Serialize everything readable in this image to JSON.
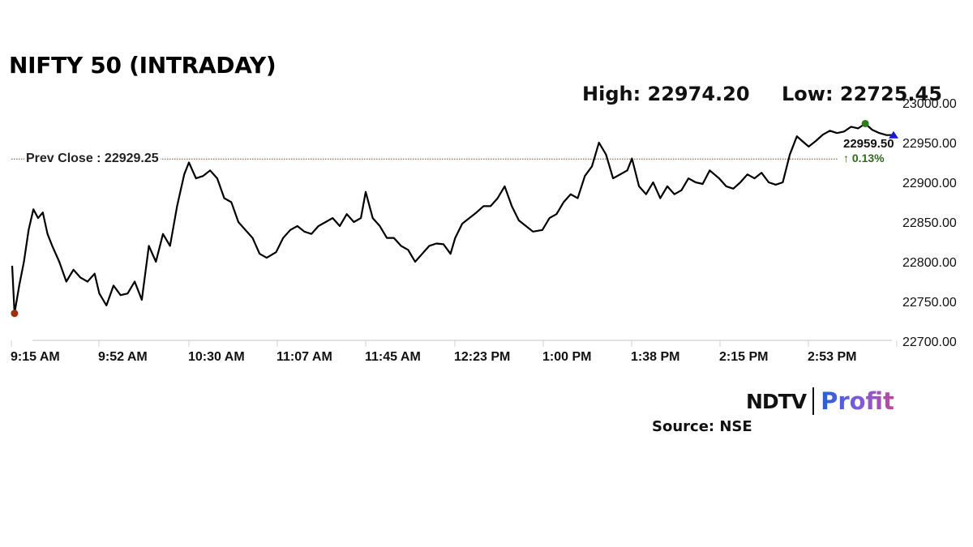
{
  "header": {
    "title": "NIFTY 50 (INTRADAY)",
    "high_label": "High: 22974.20",
    "low_label": "Low: 22725.45"
  },
  "prev_close": {
    "label": "Prev Close : 22929.25",
    "value": 22929.25,
    "line_color": "#9c7a5a"
  },
  "last_price": {
    "value": "22959.50",
    "change": "↑ 0.13%",
    "change_color": "#2e6b1a"
  },
  "markers": {
    "low_color": "#a0300a",
    "high_color": "#2e7d1a",
    "last_color": "#1a1ad6"
  },
  "footer": {
    "logo_left": "NDTV",
    "logo_right": "Profit",
    "source": "Source: NSE"
  },
  "chart_data": {
    "type": "line",
    "title": "NIFTY 50 (INTRADAY)",
    "xlabel": "",
    "ylabel": "",
    "ylim": [
      22700,
      23000
    ],
    "grid": false,
    "legend": "none",
    "y_ticks": [
      "23000.00",
      "22950.00",
      "22900.00",
      "22850.00",
      "22800.00",
      "22750.00",
      "22700.00"
    ],
    "x_ticks": [
      "9:15 AM",
      "9:52 AM",
      "10:30 AM",
      "11:07 AM",
      "11:45 AM",
      "12:23 PM",
      "1:00 PM",
      "1:38 PM",
      "2:15 PM",
      "2:53 PM"
    ],
    "annotations": [
      "Prev Close : 22929.25",
      "High: 22974.20",
      "Low: 22725.45",
      "22959.50",
      "0.13%"
    ],
    "series": [
      {
        "name": "NIFTY 50",
        "x": [
          "9:15",
          "9:16",
          "9:18",
          "9:20",
          "9:22",
          "9:24",
          "9:26",
          "9:28",
          "9:30",
          "9:32",
          "9:35",
          "9:38",
          "9:41",
          "9:44",
          "9:47",
          "9:50",
          "9:52",
          "9:55",
          "9:58",
          "10:01",
          "10:04",
          "10:07",
          "10:10",
          "10:13",
          "10:16",
          "10:19",
          "10:22",
          "10:25",
          "10:28",
          "10:30",
          "10:33",
          "10:36",
          "10:39",
          "10:42",
          "10:45",
          "10:48",
          "10:51",
          "10:54",
          "10:57",
          "11:00",
          "11:03",
          "11:07",
          "11:10",
          "11:13",
          "11:16",
          "11:19",
          "11:22",
          "11:25",
          "11:28",
          "11:31",
          "11:34",
          "11:37",
          "11:40",
          "11:43",
          "11:45",
          "11:48",
          "11:51",
          "11:54",
          "11:57",
          "12:00",
          "12:03",
          "12:06",
          "12:09",
          "12:12",
          "12:15",
          "12:18",
          "12:21",
          "12:23",
          "12:26",
          "12:29",
          "12:32",
          "12:35",
          "12:38",
          "12:41",
          "12:44",
          "12:47",
          "12:50",
          "12:53",
          "12:56",
          "13:00",
          "13:03",
          "13:06",
          "13:09",
          "13:12",
          "13:15",
          "13:18",
          "13:21",
          "13:24",
          "13:27",
          "13:30",
          "13:33",
          "13:36",
          "13:38",
          "13:41",
          "13:44",
          "13:47",
          "13:50",
          "13:53",
          "13:56",
          "13:59",
          "14:02",
          "14:05",
          "14:08",
          "14:11",
          "14:15",
          "14:18",
          "14:21",
          "14:24",
          "14:27",
          "14:30",
          "14:33",
          "14:36",
          "14:39",
          "14:42",
          "14:45",
          "14:48",
          "14:51",
          "14:53",
          "14:56",
          "14:59",
          "15:02",
          "15:05",
          "15:08",
          "15:11",
          "15:14",
          "15:17",
          "15:20",
          "15:23",
          "15:26",
          "15:29"
        ],
        "values": [
          22795,
          22735,
          22770,
          22800,
          22840,
          22866,
          22855,
          22862,
          22835,
          22820,
          22800,
          22775,
          22790,
          22780,
          22775,
          22785,
          22760,
          22745,
          22770,
          22758,
          22760,
          22775,
          22752,
          22820,
          22800,
          22835,
          22820,
          22870,
          22910,
          22925,
          22905,
          22908,
          22915,
          22905,
          22880,
          22875,
          22850,
          22840,
          22830,
          22810,
          22805,
          22812,
          22830,
          22840,
          22845,
          22838,
          22835,
          22845,
          22850,
          22855,
          22845,
          22860,
          22850,
          22855,
          22888,
          22855,
          22845,
          22830,
          22830,
          22820,
          22815,
          22800,
          22810,
          22820,
          22823,
          22822,
          22810,
          22830,
          22848,
          22855,
          22862,
          22870,
          22870,
          22880,
          22895,
          22870,
          22852,
          22845,
          22838,
          22840,
          22855,
          22860,
          22875,
          22885,
          22880,
          22908,
          22920,
          22950,
          22935,
          22905,
          22910,
          22915,
          22930,
          22895,
          22885,
          22900,
          22880,
          22895,
          22885,
          22890,
          22905,
          22900,
          22898,
          22915,
          22905,
          22895,
          22892,
          22900,
          22910,
          22905,
          22912,
          22900,
          22897,
          22900,
          22935,
          22958,
          22950,
          22945,
          22952,
          22960,
          22965,
          22962,
          22964,
          22970,
          22968,
          22974,
          22966,
          22962,
          22959.5,
          22959.5
        ]
      }
    ]
  }
}
